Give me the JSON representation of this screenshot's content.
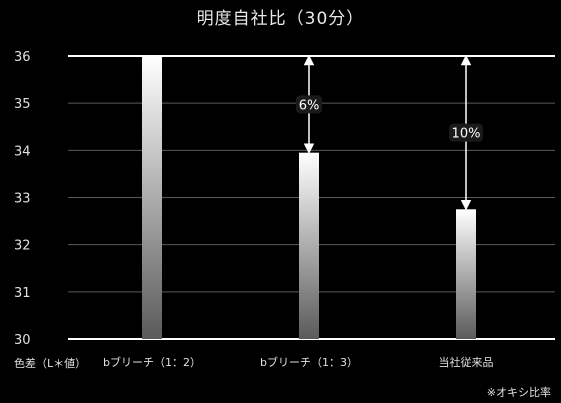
{
  "chart_data": {
    "type": "bar",
    "title": "明度自社比（30分）",
    "xlabel": "色差（L＊値）",
    "ylabel": "",
    "categories": [
      "bブリーチ（1：2）",
      "bブリーチ（1：3）",
      "当社従来品"
    ],
    "values": [
      36.0,
      33.95,
      32.75
    ],
    "ylim": [
      30,
      36
    ],
    "yticks": [
      30,
      31,
      32,
      33,
      34,
      35,
      36
    ],
    "grid": true,
    "annotations": [
      {
        "category_index": 1,
        "text": "6%"
      },
      {
        "category_index": 2,
        "text": "10%"
      }
    ],
    "footnote": "※オキシ比率",
    "colors": {
      "background": "#000000",
      "bar_top": "#ffffff",
      "bar_bottom": "#5a5a5a",
      "grid": "#5a5a5a"
    }
  }
}
